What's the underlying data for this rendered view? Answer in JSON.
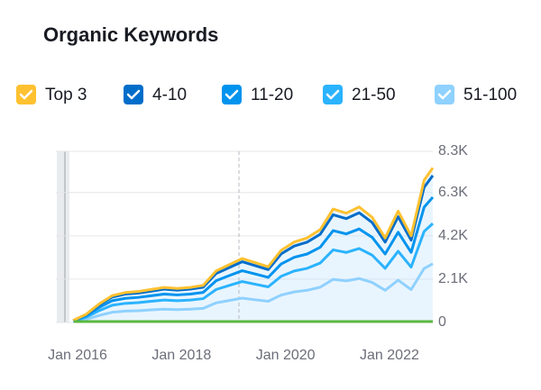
{
  "chart_data": {
    "type": "stacked_area",
    "title": "Organic Keywords",
    "x": [
      "2015-12",
      "2016-03",
      "2016-06",
      "2016-09",
      "2016-12",
      "2017-03",
      "2017-06",
      "2017-09",
      "2017-12",
      "2018-03",
      "2018-06",
      "2018-09",
      "2018-12",
      "2019-03",
      "2019-06",
      "2019-09",
      "2019-12",
      "2020-03",
      "2020-06",
      "2020-09",
      "2020-12",
      "2021-03",
      "2021-06",
      "2021-09",
      "2021-12",
      "2022-03",
      "2022-06",
      "2022-09",
      "2022-11"
    ],
    "xlim": [
      "2015-08",
      "2022-11"
    ],
    "xticks": [
      {
        "value": "2016-01",
        "label": "Jan 2016"
      },
      {
        "value": "2018-01",
        "label": "Jan 2018"
      },
      {
        "value": "2020-01",
        "label": "Jan 2020"
      },
      {
        "value": "2022-01",
        "label": "Jan 2022"
      }
    ],
    "ylim": [
      0,
      8300
    ],
    "yticks": [
      0,
      {
        "value": 2100,
        "label": "2.1K"
      },
      {
        "value": 4200,
        "label": "4.2K"
      },
      {
        "value": 6300,
        "label": "6.3K"
      },
      {
        "value": 8300,
        "label": "8.3K"
      }
    ],
    "grid": true,
    "legend": "top",
    "series": [
      {
        "name": "Top 3",
        "color": "#ffc12f",
        "values": [
          5,
          20,
          45,
          65,
          75,
          75,
          80,
          85,
          85,
          85,
          90,
          125,
          140,
          155,
          145,
          135,
          175,
          195,
          205,
          225,
          275,
          265,
          280,
          255,
          205,
          270,
          210,
          345,
          375
        ]
      },
      {
        "name": "4-10",
        "color": "#006dca",
        "values": [
          15,
          55,
          125,
          180,
          205,
          210,
          225,
          240,
          230,
          240,
          250,
          350,
          390,
          435,
          405,
          380,
          490,
          545,
          575,
          630,
          770,
          740,
          785,
          715,
          575,
          755,
          590,
          965,
          1050
        ]
      },
      {
        "name": "11-20",
        "color": "#0093ee",
        "values": [
          15,
          70,
          155,
          220,
          245,
          255,
          270,
          290,
          280,
          290,
          305,
          425,
          475,
          525,
          495,
          460,
          595,
          665,
          695,
          765,
          935,
          900,
          950,
          865,
          695,
          920,
          715,
          1175,
          1275
        ]
      },
      {
        "name": "21-50",
        "color": "#2bb3ff",
        "values": [
          25,
          105,
          235,
          340,
          375,
          390,
          415,
          440,
          430,
          440,
          470,
          650,
          730,
          805,
          755,
          700,
          910,
          1015,
          1065,
          1170,
          1430,
          1380,
          1455,
          1325,
          1065,
          1405,
          1090,
          1795,
          1950
        ]
      },
      {
        "name": "51-100",
        "color": "#8fd1ff",
        "values": [
          40,
          150,
          340,
          495,
          550,
          570,
          610,
          645,
          625,
          645,
          685,
          950,
          1065,
          1180,
          1100,
          1025,
          1330,
          1480,
          1560,
          1710,
          2090,
          2015,
          2130,
          1940,
          1560,
          2050,
          1595,
          2620,
          2850
        ]
      }
    ]
  }
}
